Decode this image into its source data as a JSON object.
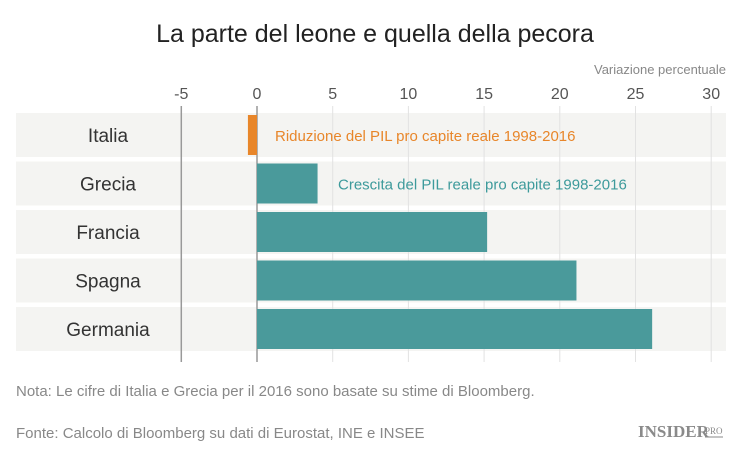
{
  "chart_data": {
    "type": "bar",
    "orientation": "horizontal",
    "title": "La parte del leone e quella della pecora",
    "xlabel": "Variazione percentuale",
    "xlim": [
      -5,
      30
    ],
    "ticks": [
      -5,
      0,
      5,
      10,
      15,
      20,
      25,
      30
    ],
    "tick_labels": [
      "-5",
      "0",
      "5",
      "10",
      "15",
      "20",
      "25",
      "30"
    ],
    "categories": [
      "Italia",
      "Grecia",
      "Francia",
      "Spagna",
      "Germania"
    ],
    "values": [
      -0.6,
      4.0,
      15.2,
      21.1,
      26.1
    ],
    "bar_colors": [
      "#e8862a",
      "#4a9a9b",
      "#4a9a9b",
      "#4a9a9b",
      "#4a9a9b"
    ],
    "annotations": [
      {
        "text": "Riduzione del PIL pro capite reale 1998-2016",
        "category": "Italia",
        "color": "#e8862a"
      },
      {
        "text": "Crescita del PIL reale pro capite 1998-2016",
        "category": "Grecia",
        "color": "#3d9a9b"
      }
    ],
    "grid": true,
    "row_background": "#f4f4f2"
  },
  "notes": {
    "nota": "Nota: Le cifre di Italia e Grecia per il 2016 sono basate su stime di Bloomberg.",
    "fonte": "Fonte: Calcolo di Bloomberg su dati di Eurostat, INE e INSEE"
  },
  "logo": {
    "text": "INSIDER",
    "sub": "PRO"
  }
}
